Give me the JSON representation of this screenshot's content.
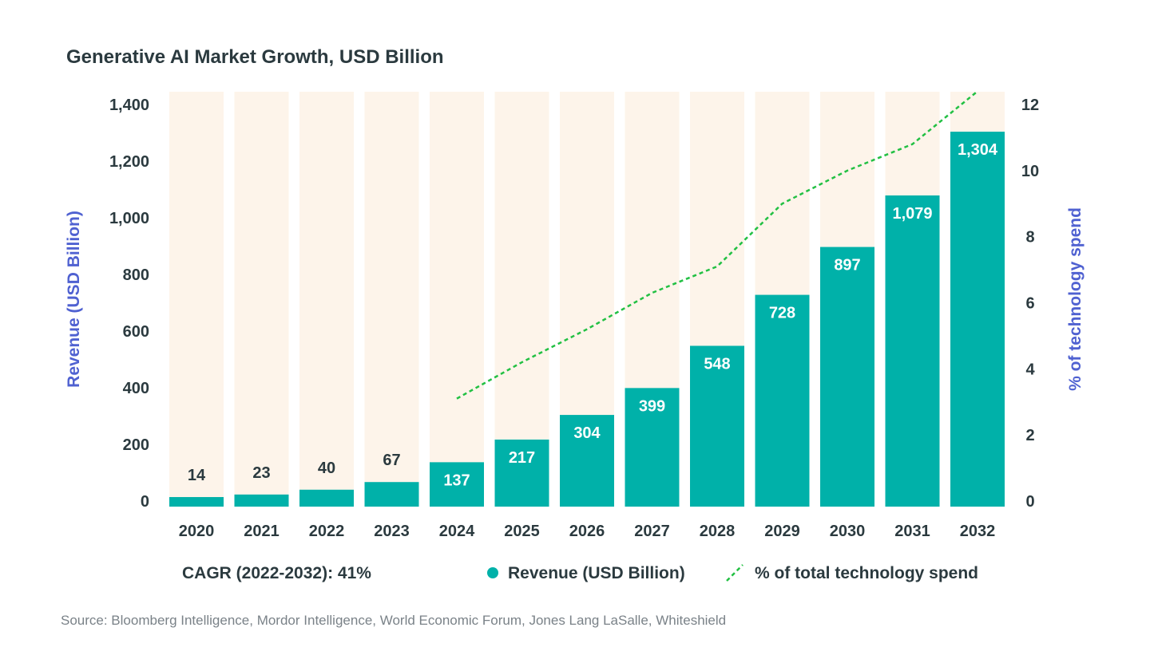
{
  "chart_data": {
    "type": "bar",
    "title": "Generative AI Market Growth, USD Billion",
    "categories": [
      "2020",
      "2021",
      "2022",
      "2023",
      "2024",
      "2025",
      "2026",
      "2027",
      "2028",
      "2029",
      "2030",
      "2031",
      "2032"
    ],
    "series": [
      {
        "name": "Revenue (USD Billion)",
        "type": "bar",
        "axis": "left",
        "values": [
          14,
          23,
          40,
          67,
          137,
          217,
          304,
          399,
          548,
          728,
          897,
          1079,
          1304
        ],
        "value_labels": [
          "14",
          "23",
          "40",
          "67",
          "137",
          "217",
          "304",
          "399",
          "548",
          "728",
          "897",
          "1,079",
          "1,304"
        ]
      },
      {
        "name": "% of total technology spend",
        "type": "line",
        "style": "dashed",
        "axis": "right",
        "x": [
          "2024",
          "2025",
          "2026",
          "2027",
          "2028",
          "2029",
          "2030",
          "2031",
          "2032"
        ],
        "values": [
          3.1,
          4.2,
          5.2,
          6.3,
          7.1,
          9.0,
          10.0,
          10.8,
          12.4
        ]
      }
    ],
    "ylabel": "Revenue (USD Billion)",
    "ylabel_right": "% of technology spend",
    "ylim": [
      0,
      1400
    ],
    "ylim_right": [
      0,
      12
    ],
    "yticks": [
      "0",
      "200",
      "400",
      "600",
      "800",
      "1,000",
      "1,200",
      "1,400"
    ],
    "yticks_right": [
      "0",
      "2",
      "4",
      "6",
      "8",
      "10",
      "12"
    ],
    "grid": false,
    "legend_position": "bottom",
    "annotation": "CAGR (2022-2032): 41%",
    "source": "Source: Bloomberg Intelligence, Mordor Intelligence, World Economic Forum, Jones Lang LaSalle, Whiteshield",
    "colors": {
      "bar": "#00b1a9",
      "background_band": "#fdf4ea",
      "line": "#22c043",
      "axis_title": "#4f61d1",
      "text_dark": "#2b3a3f",
      "label_on_bar": "#ffffff",
      "source_text": "#7a8288"
    }
  }
}
